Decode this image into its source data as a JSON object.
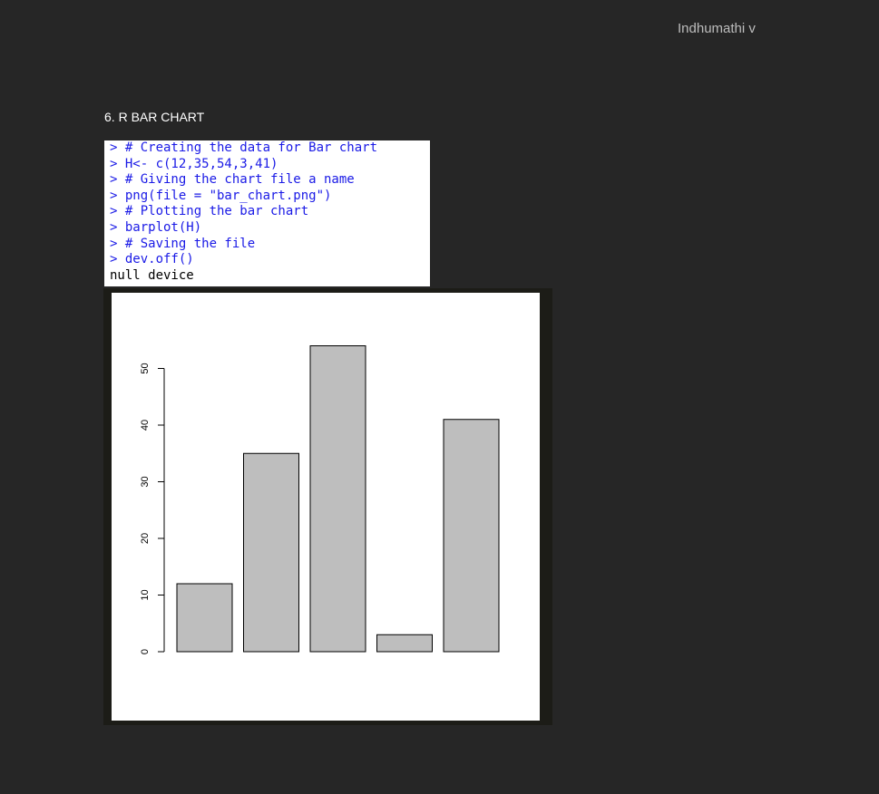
{
  "header": {
    "author": "Indhumathi v"
  },
  "section": {
    "title": "6. R BAR CHART"
  },
  "console": {
    "lines": [
      {
        "text": "> # Creating the data for Bar chart",
        "kind": "input"
      },
      {
        "text": "> H<- c(12,35,54,3,41)",
        "kind": "input"
      },
      {
        "text": "> # Giving the chart file a name",
        "kind": "input"
      },
      {
        "text": "> png(file = \"bar_chart.png\")",
        "kind": "input"
      },
      {
        "text": "> # Plotting the bar chart",
        "kind": "input"
      },
      {
        "text": "> barplot(H)",
        "kind": "input"
      },
      {
        "text": "> # Saving the file",
        "kind": "input"
      },
      {
        "text": "> dev.off()",
        "kind": "input"
      },
      {
        "text": "null device",
        "kind": "output"
      }
    ]
  },
  "colors": {
    "background": "#262626",
    "console_input": "#1a1ae6",
    "bar_fill": "#bebebe",
    "bar_stroke": "#000000"
  },
  "chart_data": {
    "type": "bar",
    "values": [
      12,
      35,
      54,
      3,
      41
    ],
    "ylim": [
      0,
      54
    ],
    "yticks": [
      "0",
      "10",
      "20",
      "30",
      "40",
      "50"
    ],
    "title": "",
    "xlabel": "",
    "ylabel": "",
    "grid": false
  }
}
